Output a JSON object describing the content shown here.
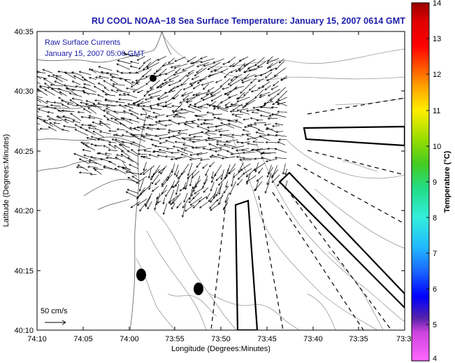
{
  "header": {
    "title": "RU COOL  NOAA−18  Sea Surface Temperature:  January 15, 2007 0614 GMT"
  },
  "legend": {
    "line1": "Raw Surface Currents",
    "line2": "January 15, 2007 05:00 GMT"
  },
  "scale": {
    "label": "50 cm/s"
  },
  "axes": {
    "xlabel": "Longitude (Degrees:Minutes)",
    "ylabel": "Latitude (Degrees:Minutes)",
    "xticks": [
      "74:10",
      "74:05",
      "74:00",
      "73:55",
      "73:50",
      "73:45",
      "73:40",
      "73:35",
      "73:3"
    ],
    "yticks": [
      "40:35",
      "40:30",
      "40:25",
      "40:20",
      "40:15",
      "40:10"
    ]
  },
  "colorbar": {
    "label": "Temperature (°C)",
    "ticks": [
      "14",
      "13",
      "12",
      "11",
      "10",
      "9",
      "8",
      "7",
      "6",
      "5",
      "4"
    ]
  },
  "chart_data": {
    "type": "map",
    "title": "RU COOL  NOAA−18  Sea Surface Temperature:  January 15, 2007 0614 GMT",
    "xlabel": "Longitude (Degrees:Minutes)",
    "ylabel": "Latitude (Degrees:Minutes)",
    "xlim": [
      "74:10",
      "73:30"
    ],
    "ylim": [
      "40:10",
      "40:35"
    ],
    "colorbar_range": [
      4,
      14
    ],
    "colorbar_unit": "Temperature (°C)"
  }
}
